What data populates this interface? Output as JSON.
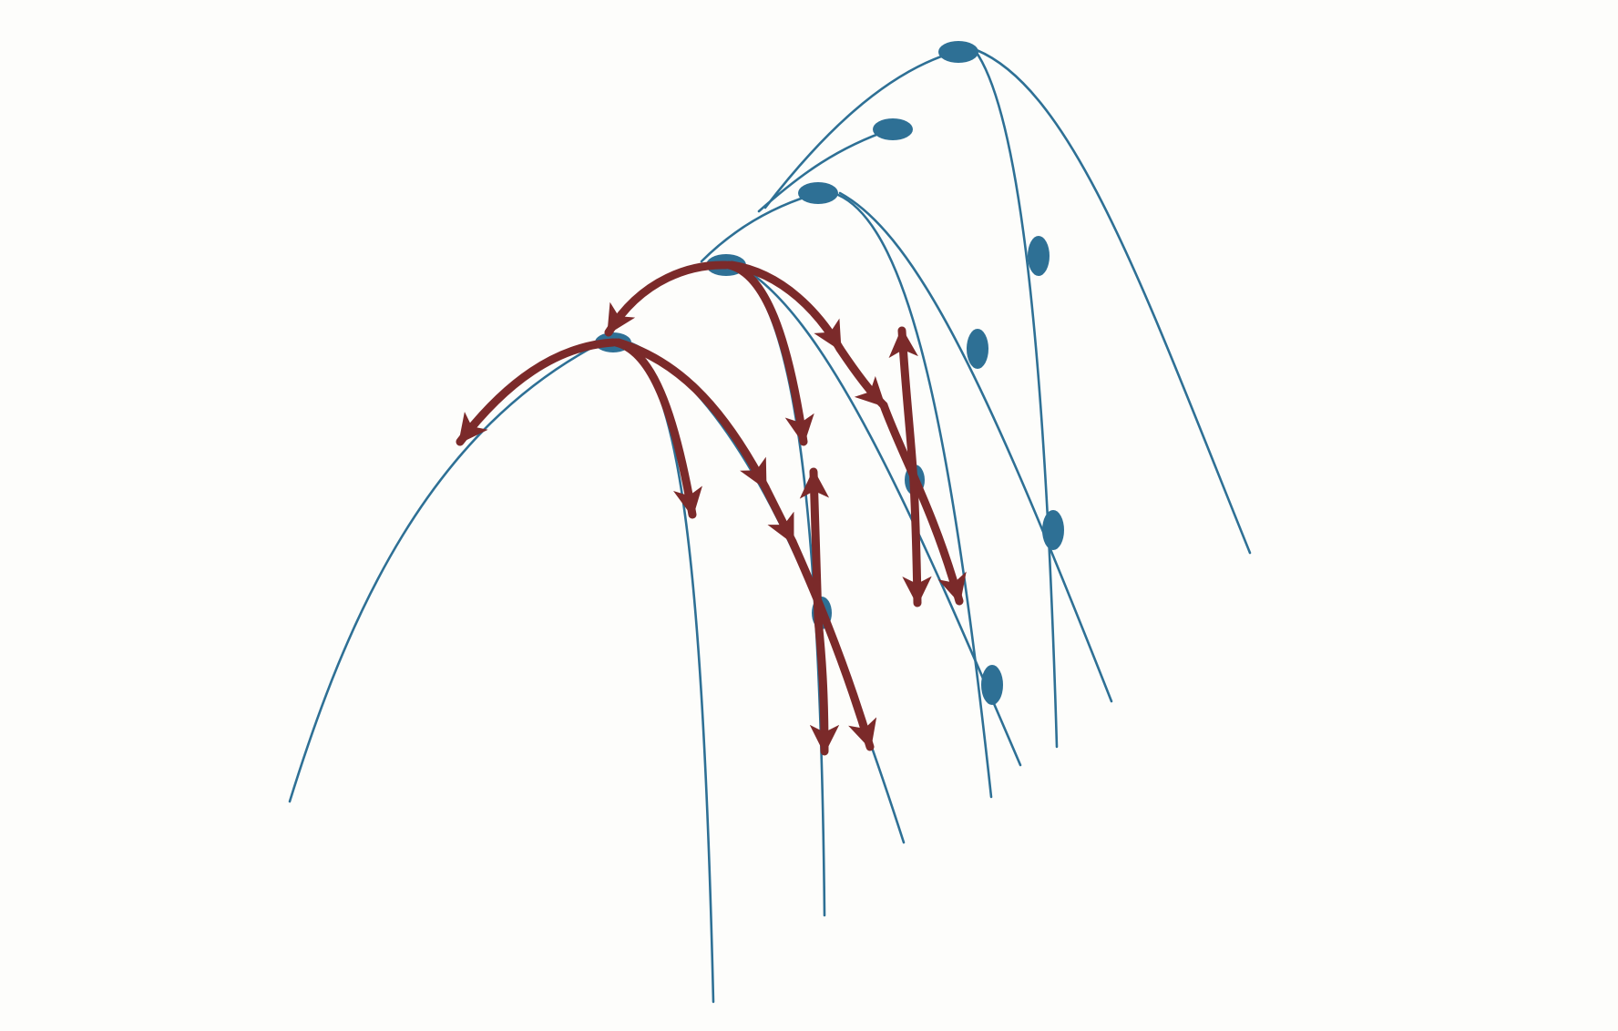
{
  "diagram": {
    "kind": "nested parabolic curves with flow arrows",
    "colors": {
      "background": "#fdfdfb",
      "curve": "#2e7095",
      "node": "#2e7095",
      "arrow": "#7b2a2a"
    },
    "blue_curves": 12,
    "nodes": 12,
    "red_arrow_paths": 9,
    "arrowheads": 16
  }
}
